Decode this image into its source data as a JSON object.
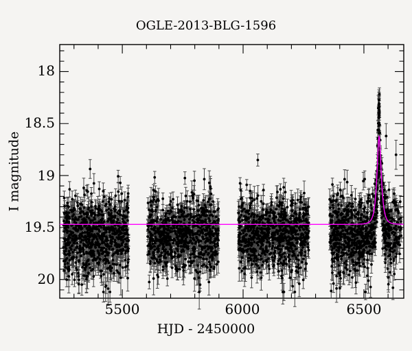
{
  "title": "OGLE-2013-BLG-1596",
  "colors": {
    "background": "#f5f4f2",
    "frame": "#000000",
    "data_points": "#000000",
    "error_bars": "#2a2a2a",
    "model_curve": "#ff00ff"
  },
  "chart_data": {
    "type": "scatter",
    "title": "OGLE-2013-BLG-1596",
    "xlabel": "HJD - 2450000",
    "ylabel": "I magnitude",
    "xlim": [
      5241,
      6665
    ],
    "ylim_mag_top": 17.74,
    "ylim_mag_bottom": 20.18,
    "y_axis_inverted": true,
    "x_ticks_major": [
      5500,
      6000,
      6500
    ],
    "x_tick_labels": [
      "5500",
      "6000",
      "6500"
    ],
    "x_tick_minor_step": 100,
    "y_ticks_major": [
      18,
      18.5,
      19,
      19.5,
      20
    ],
    "y_tick_labels": [
      "18",
      "18.5",
      "19",
      "19.5",
      "20"
    ],
    "y_tick_minor_step": 0.1,
    "grid": false,
    "legend": "none",
    "baseline_mag_data": 19.53,
    "scatter_sigma_mag": 0.165,
    "faint_skew_mag": 0.1,
    "seasons": [
      {
        "label": "season-1",
        "t_start": 5256,
        "t_end": 5526,
        "n_points": 780
      },
      {
        "label": "season-2",
        "t_start": 5605,
        "t_end": 5898,
        "n_points": 800
      },
      {
        "label": "season-3",
        "t_start": 5980,
        "t_end": 6273,
        "n_points": 820
      },
      {
        "label": "season-4",
        "t_start": 6358,
        "t_end": 6608,
        "n_points": 800
      },
      {
        "label": "season-4-tail",
        "t_start": 6608,
        "t_end": 6655,
        "n_points": 80
      }
    ],
    "model_curve": {
      "shape": "paczynski",
      "baseline_mag": 19.47,
      "t0": 6563,
      "tE_days": 15,
      "u0": 0.5,
      "peak_mag": 18.62
    },
    "event_peak_points": {
      "t0": 6563,
      "n": 26,
      "brightest_mag": 18.27,
      "faintest_mag": 19.15
    },
    "outlier_points": [
      {
        "t": 6592,
        "mag": 18.62,
        "err": 0.12
      },
      {
        "t": 6633,
        "mag": 18.8,
        "err": 0.14
      }
    ]
  }
}
